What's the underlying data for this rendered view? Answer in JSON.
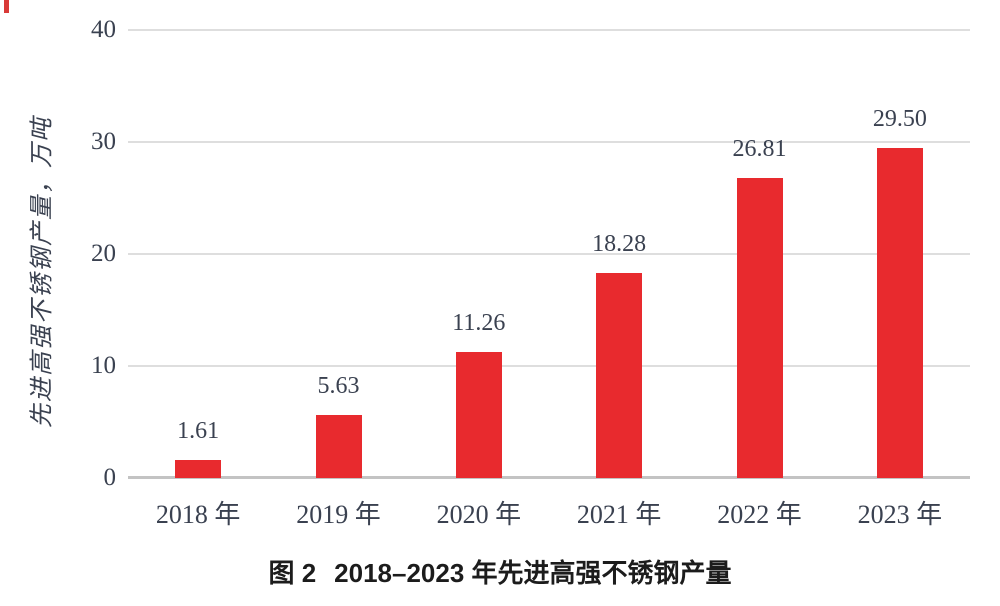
{
  "figure": {
    "caption_prefix": "图 2",
    "caption_text": "2018–2023 年先进高强不锈钢产量"
  },
  "chart_data": {
    "type": "bar",
    "title": "",
    "categories": [
      "2018 年",
      "2019 年",
      "2020 年",
      "2021 年",
      "2022 年",
      "2023 年"
    ],
    "values": [
      1.61,
      5.63,
      11.26,
      18.28,
      26.81,
      29.5
    ],
    "value_labels": [
      "1.61",
      "5.63",
      "11.26",
      "18.28",
      "26.81",
      "29.50"
    ],
    "xlabel": "",
    "ylabel": "先进高强不锈钢产量，万吨",
    "yticks": [
      0,
      10,
      20,
      30,
      40
    ],
    "ylim": [
      0,
      40
    ],
    "grid": true,
    "legend": false,
    "caption": "图 2 2018–2023 年先进高强不锈钢产量",
    "colors": {
      "bar": "#e82a2e",
      "axis_text": "#3a4150",
      "gridline": "#dedede",
      "baseline": "#c3c3c3",
      "caption": "#1c1c1c",
      "corner_mark": "#d93a38",
      "background": "#ffffff"
    }
  }
}
